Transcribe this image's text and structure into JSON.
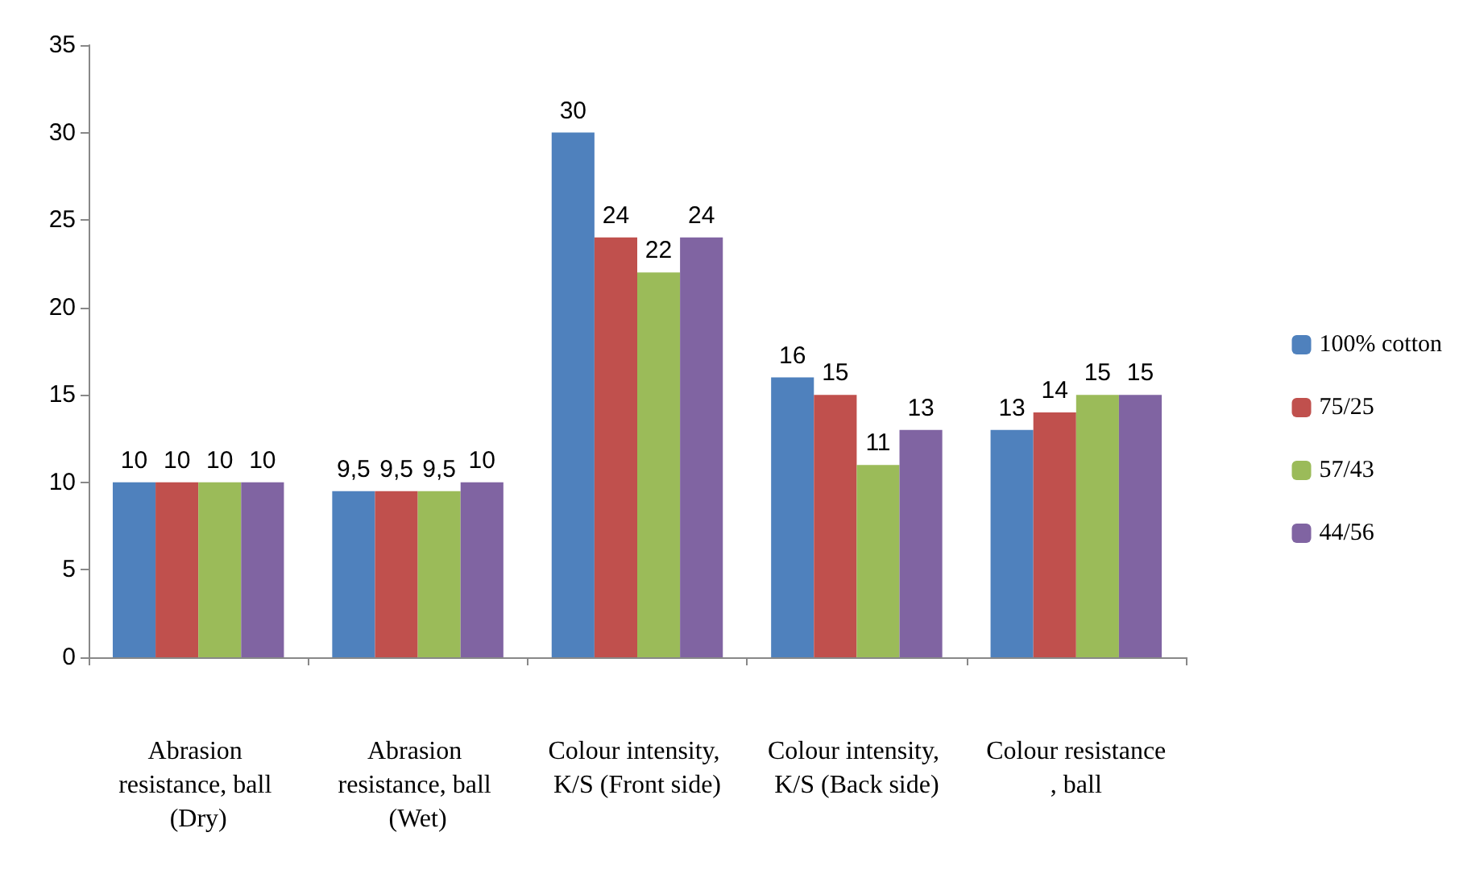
{
  "chart_data": {
    "type": "bar",
    "categories": [
      "Abrasion resistance, ball (Dry)",
      "Abrasion resistance, ball (Wet)",
      "Colour intensity, K/S (Front side)",
      "Colour intensity, K/S (Back side)",
      "Colour resistance, ball"
    ],
    "series": [
      {
        "name": "100% cotton",
        "color": "#4f81bd",
        "values": [
          10,
          9.5,
          30,
          16,
          13
        ],
        "value_labels": [
          "10",
          "9,5",
          "30",
          "16",
          "13"
        ]
      },
      {
        "name": "75/25",
        "color": "#c0504d",
        "values": [
          10,
          9.5,
          24,
          15,
          14
        ],
        "value_labels": [
          "10",
          "9,5",
          "24",
          "15",
          "14"
        ]
      },
      {
        "name": "57/43",
        "color": "#9bbb59",
        "values": [
          10,
          9.5,
          22,
          11,
          15
        ],
        "value_labels": [
          "10",
          "9,5",
          "22",
          "11",
          "15"
        ]
      },
      {
        "name": "44/56",
        "color": "#8064a2",
        "values": [
          10,
          10,
          24,
          13,
          15
        ],
        "value_labels": [
          "10",
          "10",
          "24",
          "13",
          "15"
        ]
      }
    ],
    "ylim": [
      0,
      35
    ],
    "yticks": [
      0,
      5,
      10,
      15,
      20,
      25,
      30,
      35
    ],
    "grid": false,
    "legend": "right"
  }
}
